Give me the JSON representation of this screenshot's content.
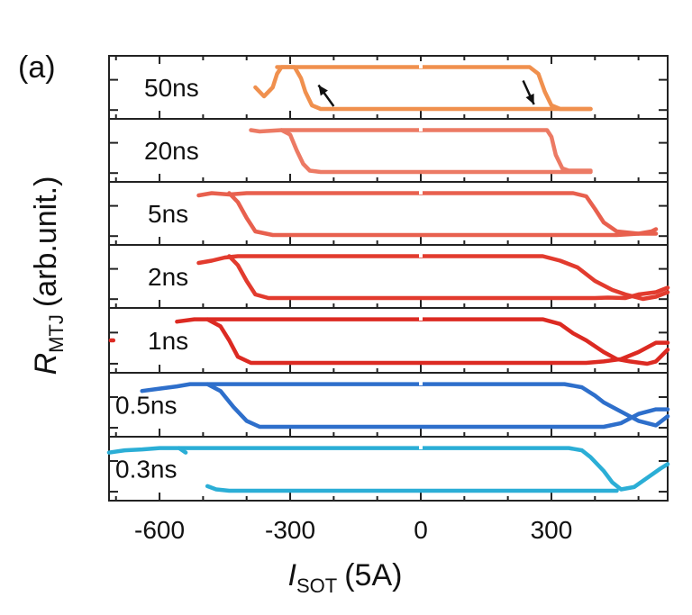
{
  "figure_tag": "(a)",
  "chart_data": {
    "type": "line",
    "title": "",
    "xlabel": {
      "main": "I",
      "sub": "SOT",
      "unit": "(5A)"
    },
    "ylabel": {
      "main": "R",
      "sub": "MTJ",
      "unit": "(arb.unit.)"
    },
    "xlim": [
      -716,
      567
    ],
    "ylim": [
      0,
      1
    ],
    "x_ticks": [
      -600,
      -300,
      0,
      300
    ],
    "x_tick_labels": [
      "-600",
      "-300",
      "0",
      "300"
    ],
    "x_minor_step": 100,
    "grid": false,
    "legend": "none",
    "annotations": [
      {
        "panel": "50ns",
        "type": "arrow",
        "direction": "up",
        "from": [
          -200,
          0.08
        ],
        "to": [
          -235,
          0.55
        ]
      },
      {
        "panel": "50ns",
        "type": "arrow",
        "direction": "down",
        "from": [
          235,
          0.65
        ],
        "to": [
          260,
          0.12
        ]
      }
    ],
    "panels": [
      {
        "label": "50ns",
        "color": "#F0904E",
        "sweep_up": {
          "x": [
            -380,
            -360,
            -340,
            -330,
            -320,
            -250,
            0,
            250,
            270,
            285,
            300,
            320,
            390
          ],
          "y": [
            0.5,
            0.3,
            0.5,
            0.8,
            0.95,
            0.95,
            0.95,
            0.95,
            0.8,
            0.4,
            0.1,
            0.02,
            0.02
          ]
        },
        "sweep_down": {
          "x": [
            390,
            300,
            0,
            -230,
            -250,
            -265,
            -275,
            -290,
            -330
          ],
          "y": [
            0.02,
            0.02,
            0.02,
            0.02,
            0.1,
            0.4,
            0.7,
            0.95,
            0.95
          ]
        }
      },
      {
        "label": "20ns",
        "color": "#EC7A64",
        "sweep_up": {
          "x": [
            -390,
            -370,
            -320,
            0,
            290,
            300,
            310,
            325,
            340,
            390
          ],
          "y": [
            0.95,
            0.92,
            0.95,
            0.95,
            0.95,
            0.8,
            0.4,
            0.1,
            0.05,
            0.05
          ]
        },
        "sweep_down": {
          "x": [
            390,
            300,
            0,
            -230,
            -255,
            -270,
            -285,
            -300,
            -320
          ],
          "y": [
            0.02,
            0.02,
            0.02,
            0.02,
            0.05,
            0.2,
            0.5,
            0.85,
            0.95
          ]
        }
      },
      {
        "label": "5ns",
        "color": "#E8604E",
        "sweep_up": {
          "x": [
            -510,
            -480,
            -440,
            -400,
            0,
            350,
            380,
            400,
            420,
            450,
            500,
            530,
            540
          ],
          "y": [
            0.9,
            0.95,
            0.92,
            0.95,
            0.95,
            0.95,
            0.88,
            0.6,
            0.3,
            0.1,
            0.05,
            0.1,
            0.15
          ]
        },
        "sweep_down": {
          "x": [
            540,
            500,
            450,
            400,
            0,
            -340,
            -380,
            -400,
            -420,
            -440
          ],
          "y": [
            0.05,
            0.05,
            0.02,
            0.02,
            0.02,
            0.02,
            0.1,
            0.4,
            0.75,
            0.95
          ]
        }
      },
      {
        "label": "2ns",
        "color": "#E23B2E",
        "sweep_up": {
          "x": [
            -510,
            -480,
            -450,
            -420,
            0,
            280,
            320,
            360,
            400,
            440,
            470,
            490,
            510,
            540,
            567
          ],
          "y": [
            0.8,
            0.85,
            0.92,
            0.95,
            0.95,
            0.95,
            0.85,
            0.7,
            0.4,
            0.2,
            0.1,
            0.05,
            0.0,
            0.05,
            0.15
          ]
        },
        "sweep_down": {
          "x": [
            567,
            540,
            500,
            470,
            430,
            400,
            0,
            -350,
            -380,
            -400,
            -420,
            -440
          ],
          "y": [
            0.25,
            0.15,
            0.1,
            0.02,
            0.03,
            0.02,
            0.02,
            0.02,
            0.1,
            0.4,
            0.75,
            0.95
          ]
        }
      },
      {
        "label": "1ns",
        "color": "#DC2A22",
        "sweep_up": {
          "x": [
            -560,
            -520,
            -490,
            0,
            280,
            320,
            350,
            380,
            420,
            450,
            480,
            520,
            540,
            567
          ],
          "y": [
            0.9,
            0.95,
            0.95,
            0.95,
            0.95,
            0.85,
            0.65,
            0.5,
            0.25,
            0.1,
            0.05,
            0.0,
            0.05,
            0.3
          ]
        },
        "sweep_down": {
          "x": [
            567,
            540,
            500,
            460,
            420,
            380,
            0,
            -390,
            -420,
            -440,
            -460,
            -490
          ],
          "y": [
            0.45,
            0.45,
            0.25,
            0.1,
            0.05,
            0.02,
            0.02,
            0.02,
            0.15,
            0.5,
            0.8,
            0.95
          ]
        },
        "stray": {
          "x": [
            -712,
            -706
          ],
          "y": [
            0.5,
            0.5
          ]
        }
      },
      {
        "label": "0.5ns",
        "color": "#2E6FCB",
        "sweep_up": {
          "x": [
            -640,
            -600,
            -560,
            -530,
            -490,
            0,
            330,
            370,
            400,
            420,
            450,
            480,
            500,
            520,
            540,
            567
          ],
          "y": [
            0.8,
            0.85,
            0.9,
            0.95,
            0.95,
            0.95,
            0.95,
            0.88,
            0.7,
            0.55,
            0.4,
            0.25,
            0.15,
            0.1,
            0.05,
            0.25
          ]
        },
        "sweep_down": {
          "x": [
            567,
            540,
            500,
            460,
            420,
            0,
            -370,
            -400,
            -430,
            -460,
            -490
          ],
          "y": [
            0.4,
            0.4,
            0.3,
            0.1,
            0.02,
            0.02,
            0.02,
            0.15,
            0.45,
            0.8,
            0.95
          ]
        }
      },
      {
        "label": "0.3ns",
        "color": "#2BAED6",
        "sweep_up": {
          "x": [
            -716,
            -680,
            -640,
            -600,
            -560,
            -530,
            0,
            340,
            370,
            390,
            420,
            440,
            460,
            490,
            520,
            550,
            567
          ],
          "y": [
            0.85,
            0.9,
            0.92,
            0.95,
            0.95,
            0.95,
            0.95,
            0.95,
            0.9,
            0.75,
            0.45,
            0.2,
            0.05,
            0.1,
            0.3,
            0.5,
            0.6
          ]
        },
        "sweep_down": {
          "x": [
            450,
            0,
            -440,
            -470,
            -490
          ],
          "y": [
            0.02,
            0.02,
            0.02,
            0.05,
            0.12
          ]
        },
        "stray": {
          "x": [
            -555,
            -540
          ],
          "y": [
            0.95,
            0.85
          ]
        }
      }
    ]
  }
}
